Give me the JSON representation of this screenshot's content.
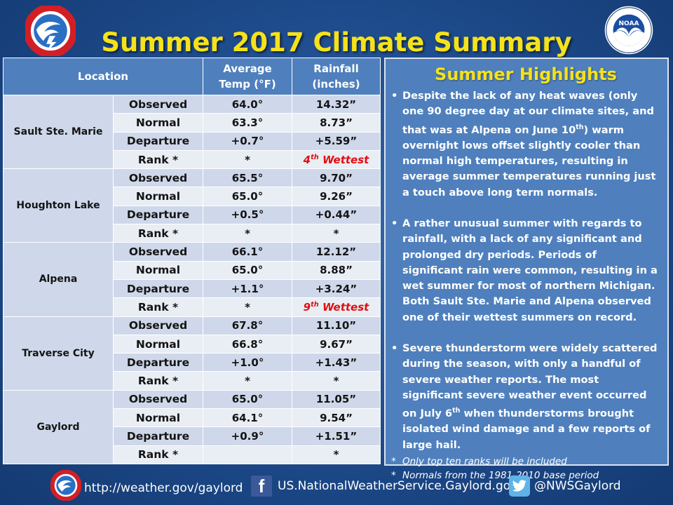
{
  "title": "Summer 2017 Climate Summary",
  "logos": {
    "nws_ring_text": "NATIONAL WEATHER SERVICE",
    "noaa_label": "NOAA",
    "noaa_ring_text": "NATIONAL OCEANIC AND ATMOSPHERIC ADMINISTRATION · U.S. DEPARTMENT OF COMMERCE"
  },
  "table": {
    "headers": {
      "location": "Location",
      "temp_line1": "Average",
      "temp_line2": "Temp (°F)",
      "rain_line1": "Rainfall",
      "rain_line2": "(inches)"
    },
    "row_labels": [
      "Observed",
      "Normal",
      "Departure",
      "Rank *"
    ],
    "locations": [
      {
        "name": "Sault Ste. Marie",
        "temp": [
          "64.0°",
          "63.3°",
          "+0.7°",
          "*"
        ],
        "rain": [
          "14.32”",
          "8.73”",
          "+5.59”",
          "4th Wettest"
        ]
      },
      {
        "name": "Houghton Lake",
        "temp": [
          "65.5°",
          "65.0°",
          "+0.5°",
          "*"
        ],
        "rain": [
          "9.70”",
          "9.26”",
          "+0.44”",
          "*"
        ]
      },
      {
        "name": "Alpena",
        "temp": [
          "66.1°",
          "65.0°",
          "+1.1°",
          "*"
        ],
        "rain": [
          "12.12”",
          "8.88”",
          "+3.24”",
          "9th Wettest"
        ]
      },
      {
        "name": "Traverse City",
        "temp": [
          "67.8°",
          "66.8°",
          "+1.0°",
          "*"
        ],
        "rain": [
          "11.10”",
          "9.67”",
          "+1.43”",
          "*"
        ]
      },
      {
        "name": "Gaylord",
        "temp": [
          "65.0°",
          "64.1°",
          "+0.9°",
          ""
        ],
        "rain": [
          "11.05”",
          "9.54”",
          "+1.51”",
          "*"
        ]
      }
    ]
  },
  "highlights": {
    "title": "Summer Highlights",
    "bullets": [
      "Despite the lack of any heat waves (only one 90 degree day at our climate sites, and that was at Alpena on June 10th) warm overnight lows offset slightly cooler than normal high temperatures, resulting in average summer temperatures running  just a touch above long term normals.",
      "A rather unusual summer with regards to rainfall, with a lack of any significant and prolonged dry periods.  Periods of significant rain were common, resulting in a wet summer for most of northern Michigan.  Both Sault Ste. Marie and Alpena observed one of their wettest summers on record.",
      "Severe thunderstorm were widely scattered during the season, with only a handful of severe weather reports.  The most significant severe weather event occurred on July 6th when thunderstorms brought isolated wind damage and a few reports of large hail."
    ],
    "notes": [
      "Only top ten ranks will be included",
      "Normals from the 1981-2010 base period"
    ]
  },
  "footer": {
    "website": "http://weather.gov/gaylord",
    "facebook_icon_letter": "f",
    "facebook": "US.NationalWeatherService.Gaylord.gov",
    "twitter": "@NWSGaylord"
  },
  "colors": {
    "title": "#f5e21b",
    "header_bg": "#4f80bd",
    "row_dark": "#cfd8ea",
    "row_light": "#e9edf4",
    "rank_highlight": "#e01010"
  }
}
